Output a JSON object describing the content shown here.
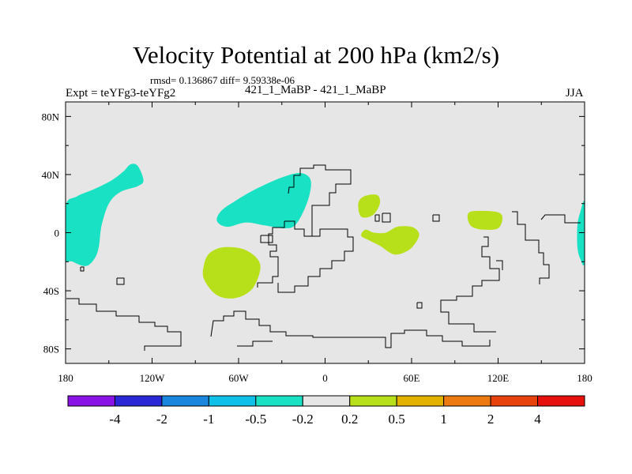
{
  "chart_data": {
    "type": "contour-map",
    "title": "Velocity Potential at 200 hPa (km2/s)",
    "stats": "rmsd= 0.136867 diff= 9.59338e-06",
    "left_label": "Expt = teYFg3-teYFg2",
    "center_label": "421_1_MaBP - 421_1_MaBP",
    "right_label": "JJA",
    "x_axis": {
      "min": -180,
      "max": 180,
      "ticks": [
        -180,
        -120,
        -60,
        0,
        60,
        120,
        180
      ],
      "tick_labels": [
        "180",
        "120W",
        "60W",
        "0",
        "60E",
        "120E",
        "180"
      ]
    },
    "y_axis": {
      "min": -90,
      "max": 90,
      "ticks": [
        -80,
        -40,
        0,
        40,
        80
      ],
      "tick_labels": [
        "80S",
        "40S",
        "0",
        "40N",
        "80N"
      ]
    },
    "colorbar": {
      "bounds": [
        -4,
        -2,
        -1,
        -0.5,
        -0.2,
        0.2,
        0.5,
        1,
        2,
        4
      ],
      "labels": [
        "-4",
        "-2",
        "-1",
        "-0.5",
        "-0.2",
        "0.2",
        "0.5",
        "1",
        "2",
        "4"
      ],
      "colors": [
        "#8b12e6",
        "#2a28d6",
        "#1a86de",
        "#0fc0e8",
        "#19e1c3",
        "#e6e6e6",
        "#b8e01a",
        "#e3b100",
        "#ed7a10",
        "#e8420c",
        "#e6100c"
      ]
    },
    "regions": [
      {
        "level": "-0.5 to -0.2",
        "color": "#19e1c3",
        "label": "North Pacific negative anomaly",
        "outline": [
          [
            -180,
            18
          ],
          [
            -172,
            25
          ],
          [
            -160,
            30
          ],
          [
            -148,
            36
          ],
          [
            -140,
            42
          ],
          [
            -135,
            47
          ],
          [
            -130,
            46
          ],
          [
            -126,
            36
          ],
          [
            -130,
            32
          ],
          [
            -142,
            28
          ],
          [
            -150,
            20
          ],
          [
            -155,
            5
          ],
          [
            -157,
            -10
          ],
          [
            -160,
            -18
          ],
          [
            -166,
            -23
          ],
          [
            -175,
            -20
          ],
          [
            -180,
            -16
          ]
        ]
      },
      {
        "level": "-0.5 to -0.2",
        "color": "#19e1c3",
        "label": "North Atlantic negative anomaly",
        "outline": [
          [
            -75,
            8
          ],
          [
            -72,
            15
          ],
          [
            -62,
            22
          ],
          [
            -48,
            30
          ],
          [
            -30,
            38
          ],
          [
            -17,
            41
          ],
          [
            -10,
            36
          ],
          [
            -12,
            22
          ],
          [
            -20,
            6
          ],
          [
            -28,
            3
          ],
          [
            -42,
            5
          ],
          [
            -55,
            7
          ],
          [
            -68,
            4
          ]
        ]
      },
      {
        "level": "-0.5 to -0.2",
        "color": "#19e1c3",
        "label": "Small Pacific blob",
        "outline": [
          [
            -178,
            -15
          ],
          [
            -181,
            -14
          ],
          [
            -182,
            -17
          ],
          [
            -180,
            -20
          ],
          [
            -177,
            -19
          ]
        ]
      },
      {
        "level": "-0.5 to -0.2",
        "color": "#19e1c3",
        "label": "Dateline eastern edge",
        "outline": [
          [
            180,
            20
          ],
          [
            177,
            14
          ],
          [
            175,
            5
          ],
          [
            175,
            -10
          ],
          [
            177,
            -18
          ],
          [
            180,
            -20
          ]
        ]
      },
      {
        "level": "0.2 to 0.5",
        "color": "#b8e01a",
        "label": "South Atlantic positive anomaly",
        "outline": [
          [
            -84,
            -22
          ],
          [
            -80,
            -14
          ],
          [
            -70,
            -10
          ],
          [
            -55,
            -12
          ],
          [
            -45,
            -22
          ],
          [
            -50,
            -38
          ],
          [
            -62,
            -45
          ],
          [
            -75,
            -43
          ],
          [
            -84,
            -32
          ]
        ]
      },
      {
        "level": "0.2 to 0.5",
        "color": "#b8e01a",
        "label": "East Africa positive anomaly",
        "outline": [
          [
            23,
            20
          ],
          [
            27,
            25
          ],
          [
            36,
            26
          ],
          [
            38,
            20
          ],
          [
            33,
            12
          ],
          [
            25,
            11
          ]
        ]
      },
      {
        "level": "0.2 to 0.5",
        "color": "#b8e01a",
        "label": "Indian Ocean positive anomaly",
        "outline": [
          [
            25,
            -2
          ],
          [
            30,
            -5
          ],
          [
            38,
            -9
          ],
          [
            48,
            -15
          ],
          [
            58,
            -12
          ],
          [
            64,
            -5
          ],
          [
            65,
            0
          ],
          [
            60,
            4
          ],
          [
            50,
            4
          ],
          [
            42,
            0
          ],
          [
            34,
            0
          ],
          [
            28,
            2
          ]
        ]
      },
      {
        "level": "0.2 to 0.5",
        "color": "#b8e01a",
        "label": "Maritime continent positive anomaly",
        "outline": [
          [
            100,
            14
          ],
          [
            108,
            15
          ],
          [
            120,
            14
          ],
          [
            123,
            10
          ],
          [
            120,
            3
          ],
          [
            110,
            2
          ],
          [
            102,
            4
          ],
          [
            99,
            9
          ]
        ]
      }
    ],
    "landmasks": [
      {
        "label": "Americas coastline",
        "outline": [
          [
            -165,
            -24
          ],
          [
            -163,
            -24
          ],
          [
            -163,
            -26
          ],
          [
            -165,
            -26
          ]
        ]
      }
    ]
  }
}
